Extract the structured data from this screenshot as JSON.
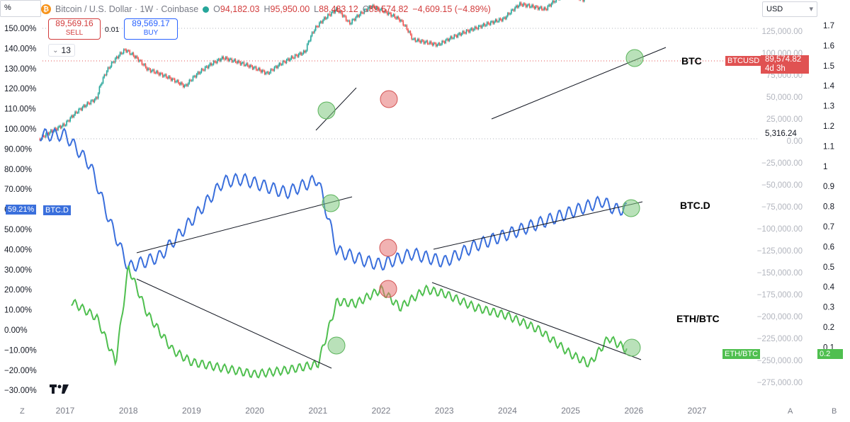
{
  "header": {
    "pct_button": "%",
    "coin_glyph": "₿",
    "symbol_title": "Bitcoin / U.S. Dollar · 1W · Coinbase",
    "o_label": "O",
    "o_value": "94,182.03",
    "h_label": "H",
    "h_value": "95,950.00",
    "l_label": "L",
    "l_value": "88,483.12",
    "c_label": "C",
    "c_value": "89,574.82",
    "change": "−4,609.15 (−4.89%)",
    "currency": "USD",
    "currency_caret": "▾",
    "collapse_value": "13",
    "collapse_caret": "⌄"
  },
  "trade": {
    "sell_price": "89,569.16",
    "sell_label": "SELL",
    "spread": "0.01",
    "buy_price": "89,569.17",
    "buy_label": "BUY"
  },
  "tags": {
    "btc_d_pct": "59.21%",
    "btc_d_name": "BTC.D",
    "btcusd_name": "BTCUSD",
    "btcusd_price": "89,574.82",
    "btcusd_time": "4d 3h",
    "ethbtc_name": "ETH/BTC",
    "ethbtc_value": "0.2",
    "level_5316": "5,316.24"
  },
  "labels": {
    "btc": "BTC",
    "btcd": "BTC.D",
    "ethbtc": "ETH/BTC"
  },
  "bottom": {
    "z": "Z",
    "a": "A",
    "b": "B"
  },
  "colors": {
    "btc_up": "#26a69a",
    "btc_down": "#ef5350",
    "btcd_line": "#3a6fdc",
    "ethbtc_line": "#4fbf4f",
    "green_marker": "#7fc97f",
    "red_marker": "#e57373"
  },
  "chart_data": {
    "type": "line",
    "x_ticks": [
      "2017",
      "2018",
      "2019",
      "2020",
      "2021",
      "2022",
      "2023",
      "2024",
      "2025",
      "2026",
      "2027"
    ],
    "left_axis_ticks": [
      "150.00%",
      "140.00%",
      "130.00%",
      "120.00%",
      "110.00%",
      "100.00%",
      "90.00%",
      "80.00%",
      "70.00%",
      "60.00%",
      "50.00%",
      "40.00%",
      "30.00%",
      "20.00%",
      "10.00%",
      "0.00%",
      "−10.00%",
      "−20.00%",
      "−30.00%"
    ],
    "mid_axis_ticks": [
      "125,000.00",
      "100,000.00",
      "75,000.00",
      "50,000.00",
      "25,000.00",
      "0.00",
      "−25,000.00",
      "−50,000.00",
      "−75,000.00",
      "−100,000.00",
      "−125,000.00",
      "−150,000.00",
      "−175,000.00",
      "−200,000.00",
      "−225,000.00",
      "−250,000.00",
      "−275,000.00"
    ],
    "right_axis_ticks": [
      "1.7",
      "1.6",
      "1.5",
      "1.4",
      "1.3",
      "1.2",
      "1.1",
      "1",
      "0.9",
      "0.8",
      "0.7",
      "0.6",
      "0.5",
      "0.4",
      "0.3",
      "0.2",
      "0.1"
    ],
    "series": [
      {
        "name": "BTCUSD",
        "x": [
          2016.6,
          2017.0,
          2017.5,
          2017.95,
          2018.3,
          2018.9,
          2019.5,
          2020.2,
          2020.8,
          2020.95,
          2021.3,
          2021.5,
          2021.85,
          2022.3,
          2022.5,
          2022.9,
          2023.5,
          2023.95,
          2024.2,
          2024.6,
          2024.9,
          2025.2,
          2025.4,
          2025.6,
          2025.8,
          2025.9
        ],
        "values": [
          600,
          1000,
          2500,
          14000,
          7000,
          3800,
          10500,
          6000,
          13000,
          29000,
          58000,
          35000,
          65000,
          40000,
          20000,
          16500,
          30000,
          42000,
          70000,
          58000,
          100000,
          82000,
          105000,
          118000,
          112000,
          89574.82
        ]
      },
      {
        "name": "BTC.D",
        "x": [
          2016.6,
          2017.0,
          2017.4,
          2017.7,
          2018.0,
          2018.5,
          2019.0,
          2019.5,
          2019.8,
          2020.5,
          2021.0,
          2021.3,
          2021.8,
          2022.0,
          2022.5,
          2023.0,
          2023.5,
          2024.0,
          2024.5,
          2025.0,
          2025.5,
          2025.7,
          2025.9
        ],
        "values": [
          86,
          86,
          75,
          55,
          38,
          42,
          55,
          69,
          70,
          65,
          70,
          44,
          40,
          39,
          43,
          40,
          46,
          50,
          54,
          58,
          62,
          59,
          59.21
        ]
      },
      {
        "name": "ETH/BTC",
        "x": [
          2017.1,
          2017.5,
          2017.8,
          2018.0,
          2018.3,
          2018.7,
          2019.0,
          2019.5,
          2020.0,
          2020.5,
          2021.0,
          2021.3,
          2021.6,
          2022.0,
          2022.3,
          2022.7,
          2023.0,
          2023.5,
          2024.0,
          2024.5,
          2025.0,
          2025.3,
          2025.6,
          2025.9
        ],
        "values": [
          0.46,
          0.38,
          0.16,
          0.63,
          0.4,
          0.22,
          0.16,
          0.13,
          0.1,
          0.12,
          0.15,
          0.46,
          0.45,
          0.52,
          0.43,
          0.52,
          0.5,
          0.43,
          0.39,
          0.32,
          0.2,
          0.15,
          0.28,
          0.22
        ]
      }
    ]
  }
}
